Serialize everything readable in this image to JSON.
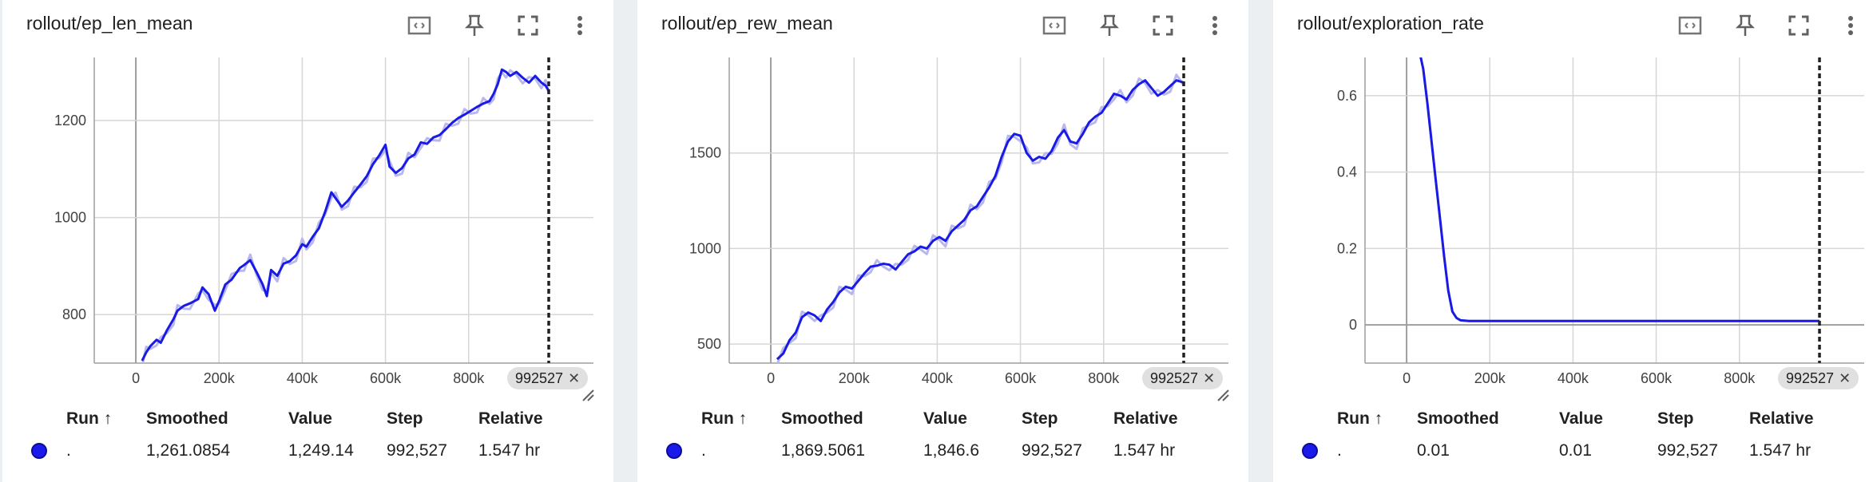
{
  "table_headers": {
    "run": "Run ↑",
    "smoothed": "Smoothed",
    "value": "Value",
    "step": "Step",
    "relative": "Relative"
  },
  "colors": {
    "smoothed_line": "#1a1ae6",
    "raw_line": "#b8b8ee",
    "grid": "#d6d6d6",
    "axis": "#9e9e9e"
  },
  "icons": [
    "fit-domain-icon",
    "pin-icon",
    "fullscreen-icon",
    "more-vert-icon"
  ],
  "chart_data": [
    {
      "type": "line",
      "title": "rollout/ep_len_mean",
      "xlim": [
        -100000,
        1100000
      ],
      "ylim": [
        700,
        1330
      ],
      "x_ticks": [
        0,
        200000,
        400000,
        600000,
        800000
      ],
      "x_tick_labels": [
        "0",
        "200k",
        "400k",
        "600k",
        "800k"
      ],
      "y_ticks": [
        800,
        1000,
        1200
      ],
      "y_tick_labels": [
        "800",
        "1000",
        "1200"
      ],
      "cursor_step": 992527,
      "cursor_label": "992527",
      "series": [
        {
          "x": [
            15000,
            25000,
            35000,
            50000,
            60000,
            75000,
            90000,
            100000,
            115000,
            130000,
            150000,
            160000,
            175000,
            190000,
            200000,
            215000,
            230000,
            250000,
            260000,
            275000,
            290000,
            305000,
            315000,
            325000,
            340000,
            355000,
            370000,
            385000,
            400000,
            410000,
            425000,
            440000,
            455000,
            470000,
            480000,
            495000,
            510000,
            525000,
            540000,
            555000,
            570000,
            585000,
            600000,
            610000,
            625000,
            640000,
            655000,
            670000,
            685000,
            700000,
            715000,
            730000,
            745000,
            760000,
            775000,
            790000,
            805000,
            820000,
            835000,
            850000,
            860000,
            870000,
            880000,
            890000,
            900000,
            915000,
            930000,
            945000,
            960000,
            975000,
            985000,
            992527
          ],
          "y": [
            705,
            722,
            735,
            748,
            742,
            768,
            790,
            808,
            818,
            823,
            832,
            856,
            842,
            808,
            828,
            862,
            872,
            896,
            902,
            912,
            888,
            862,
            838,
            892,
            880,
            905,
            910,
            922,
            945,
            940,
            960,
            978,
            1012,
            1052,
            1040,
            1022,
            1035,
            1052,
            1068,
            1085,
            1110,
            1128,
            1150,
            1105,
            1092,
            1102,
            1122,
            1130,
            1155,
            1152,
            1165,
            1170,
            1182,
            1195,
            1205,
            1212,
            1220,
            1228,
            1235,
            1240,
            1255,
            1275,
            1305,
            1300,
            1292,
            1300,
            1288,
            1278,
            1292,
            1278,
            1272,
            1261
          ]
        }
      ],
      "table": {
        "run": ".",
        "smoothed": "1,261.0854",
        "value": "1,249.14",
        "step": "992,527",
        "relative": "1.547 hr"
      }
    },
    {
      "type": "line",
      "title": "rollout/ep_rew_mean",
      "xlim": [
        -100000,
        1100000
      ],
      "ylim": [
        400,
        2000
      ],
      "x_ticks": [
        0,
        200000,
        400000,
        600000,
        800000
      ],
      "x_tick_labels": [
        "0",
        "200k",
        "400k",
        "600k",
        "800k"
      ],
      "y_ticks": [
        500,
        1000,
        1500
      ],
      "y_tick_labels": [
        "500",
        "1000",
        "1500"
      ],
      "cursor_step": 992527,
      "cursor_label": "992527",
      "series": [
        {
          "x": [
            15000,
            30000,
            45000,
            60000,
            75000,
            90000,
            105000,
            120000,
            135000,
            150000,
            165000,
            180000,
            195000,
            210000,
            225000,
            240000,
            255000,
            270000,
            285000,
            300000,
            315000,
            330000,
            345000,
            360000,
            375000,
            390000,
            405000,
            420000,
            435000,
            450000,
            465000,
            480000,
            495000,
            510000,
            525000,
            540000,
            555000,
            570000,
            585000,
            600000,
            615000,
            630000,
            645000,
            660000,
            675000,
            690000,
            705000,
            720000,
            735000,
            750000,
            765000,
            780000,
            795000,
            810000,
            825000,
            840000,
            855000,
            870000,
            885000,
            900000,
            915000,
            930000,
            945000,
            960000,
            975000,
            992527
          ],
          "y": [
            420,
            450,
            520,
            560,
            640,
            665,
            650,
            620,
            680,
            720,
            770,
            800,
            790,
            830,
            870,
            905,
            910,
            920,
            915,
            890,
            930,
            970,
            985,
            1010,
            1000,
            1040,
            1060,
            1040,
            1090,
            1120,
            1150,
            1200,
            1220,
            1270,
            1320,
            1380,
            1480,
            1560,
            1600,
            1590,
            1500,
            1460,
            1480,
            1470,
            1510,
            1580,
            1620,
            1560,
            1550,
            1600,
            1660,
            1690,
            1710,
            1760,
            1810,
            1800,
            1780,
            1830,
            1860,
            1880,
            1840,
            1800,
            1820,
            1850,
            1880,
            1869
          ]
        }
      ],
      "table": {
        "run": ".",
        "smoothed": "1,869.5061",
        "value": "1,846.6",
        "step": "992,527",
        "relative": "1.547 hr"
      }
    },
    {
      "type": "line",
      "title": "rollout/exploration_rate",
      "xlim": [
        -100000,
        1100000
      ],
      "ylim": [
        -0.1,
        0.7
      ],
      "x_ticks": [
        0,
        200000,
        400000,
        600000,
        800000
      ],
      "x_tick_labels": [
        "0",
        "200k",
        "400k",
        "600k",
        "800k"
      ],
      "y_ticks": [
        0,
        0.2,
        0.4,
        0.6
      ],
      "y_tick_labels": [
        "0",
        "0.2",
        "0.4",
        "0.6"
      ],
      "cursor_step": 992527,
      "cursor_label": "992527",
      "series": [
        {
          "x": [
            30000,
            40000,
            50000,
            60000,
            70000,
            80000,
            90000,
            100000,
            110000,
            120000,
            130000,
            150000,
            200000,
            400000,
            600000,
            800000,
            992527
          ],
          "y": [
            0.72,
            0.67,
            0.58,
            0.48,
            0.38,
            0.28,
            0.18,
            0.09,
            0.035,
            0.018,
            0.012,
            0.01,
            0.01,
            0.01,
            0.01,
            0.01,
            0.01
          ]
        }
      ],
      "table": {
        "run": ".",
        "smoothed": "0.01",
        "value": "0.01",
        "step": "992,527",
        "relative": "1.547 hr"
      }
    }
  ]
}
